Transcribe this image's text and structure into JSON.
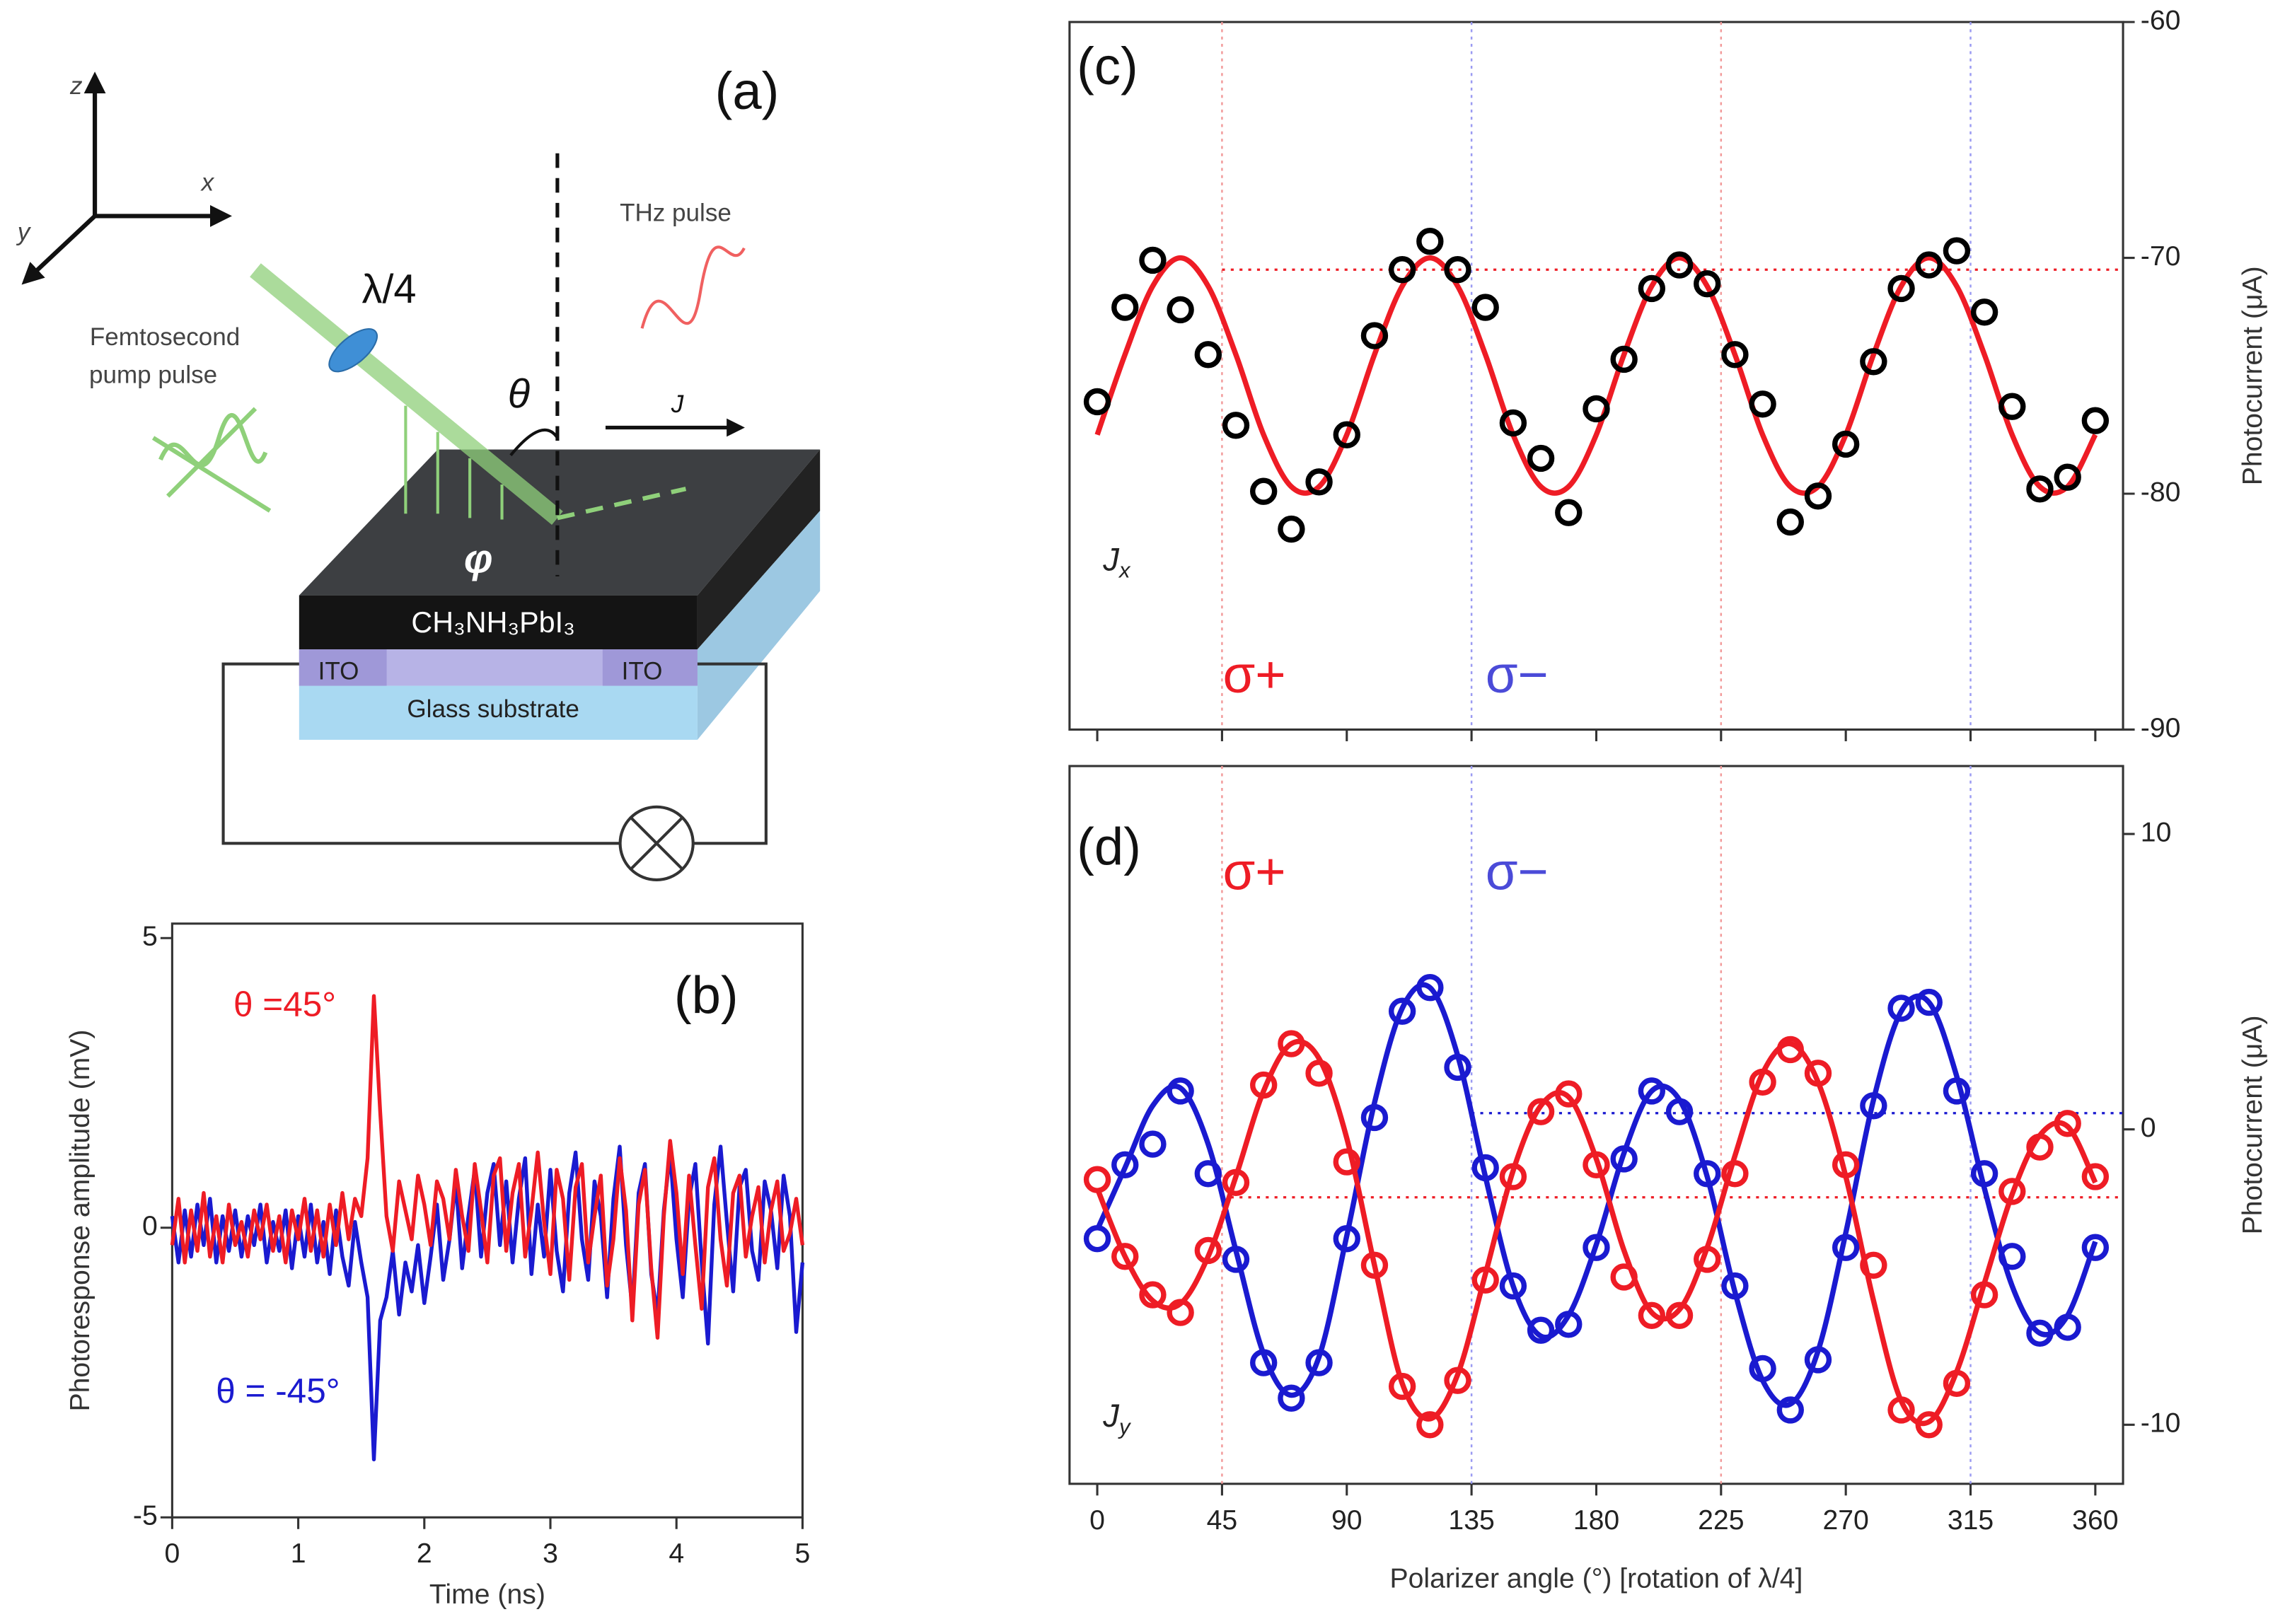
{
  "diagram": {
    "label": "(a)",
    "axes": [
      "z",
      "x",
      "y"
    ],
    "waveplate": "λ/4",
    "thz": "THz pulse",
    "pump": [
      "Femtosecond",
      "pump pulse"
    ],
    "theta": "θ",
    "current": "J",
    "phi": "φ",
    "film": "CH₃NH₃PbI₃",
    "electrodes": [
      "ITO",
      "ITO"
    ],
    "substrate": "Glass substrate"
  },
  "chart_data": [
    {
      "type": "line",
      "label": "(b)",
      "xlabel": "Time (ns)",
      "ylabel": "Photoresponse amplitude (mV)",
      "xlim": [
        0,
        5
      ],
      "xticks": [
        0,
        1,
        2,
        3,
        4,
        5
      ],
      "ylim": [
        -5,
        5.25
      ],
      "yticks": [
        -5,
        0,
        5
      ],
      "annotations": [
        {
          "text": "θ =45°",
          "color": "#ee1c25"
        },
        {
          "text": "θ = -45°",
          "color": "#1a1ad0"
        }
      ],
      "x": [
        0,
        0.05,
        0.1,
        0.15,
        0.2,
        0.25,
        0.3,
        0.35,
        0.4,
        0.45,
        0.5,
        0.55,
        0.6,
        0.65,
        0.7,
        0.75,
        0.8,
        0.85,
        0.9,
        0.95,
        1,
        1.05,
        1.1,
        1.15,
        1.2,
        1.25,
        1.3,
        1.35,
        1.4,
        1.45,
        1.5,
        1.55,
        1.6,
        1.65,
        1.7,
        1.75,
        1.8,
        1.85,
        1.9,
        1.95,
        2,
        2.05,
        2.1,
        2.15,
        2.2,
        2.25,
        2.3,
        2.35,
        2.4,
        2.45,
        2.5,
        2.55,
        2.6,
        2.65,
        2.7,
        2.75,
        2.8,
        2.85,
        2.9,
        2.95,
        3,
        3.05,
        3.1,
        3.15,
        3.2,
        3.25,
        3.3,
        3.35,
        3.4,
        3.45,
        3.5,
        3.55,
        3.6,
        3.65,
        3.7,
        3.75,
        3.8,
        3.85,
        3.9,
        3.95,
        4,
        4.05,
        4.1,
        4.15,
        4.2,
        4.25,
        4.3,
        4.35,
        4.4,
        4.45,
        4.5,
        4.55,
        4.6,
        4.65,
        4.7,
        4.75,
        4.8,
        4.85,
        4.9,
        4.95,
        5
      ],
      "series": [
        {
          "color": "#1a1ad0",
          "values": [
            0.2,
            -0.6,
            0.3,
            -0.5,
            0.4,
            -0.3,
            0.5,
            -0.6,
            0.2,
            -0.4,
            0.3,
            -0.5,
            0.2,
            -0.3,
            0.4,
            -0.6,
            0.1,
            -0.4,
            0.3,
            -0.7,
            0.2,
            -0.5,
            0.4,
            -0.6,
            0.1,
            -0.8,
            0.3,
            -0.5,
            -1.0,
            0.1,
            -0.6,
            -1.2,
            -4.0,
            -1.6,
            -1.2,
            -0.4,
            -1.5,
            -0.6,
            -1.1,
            -0.3,
            -1.3,
            -0.5,
            0.4,
            -0.9,
            -0.2,
            0.8,
            -0.7,
            0.2,
            1.0,
            -0.5,
            0.6,
            1.1,
            -0.3,
            0.8,
            -0.6,
            0.5,
            1.2,
            -0.8,
            0.4,
            -0.5,
            1.0,
            -0.4,
            -1.1,
            0.6,
            1.3,
            -0.2,
            -0.9,
            0.8,
            0.2,
            -1.2,
            0.5,
            1.4,
            -0.3,
            -1.4,
            0.6,
            1.1,
            -0.8,
            -1.5,
            0.3,
            1.3,
            -0.2,
            -1.2,
            0.5,
            1.1,
            -0.6,
            -2.0,
            0.4,
            1.4,
            0.1,
            -1.1,
            0.7,
            1.0,
            -0.4,
            -0.9,
            0.8,
            0.3,
            -0.7,
            0.9,
            0.2,
            -1.8,
            -0.6
          ]
        },
        {
          "color": "#ee1c25",
          "values": [
            -0.3,
            0.5,
            -0.6,
            0.3,
            -0.4,
            0.6,
            -0.5,
            0.2,
            -0.6,
            0.4,
            -0.3,
            0.1,
            -0.5,
            0.3,
            -0.2,
            0.4,
            -0.4,
            0.2,
            -0.6,
            0.3,
            -0.2,
            0.5,
            -0.4,
            0.3,
            -0.5,
            0.4,
            -0.3,
            0.6,
            -0.2,
            0.5,
            0.2,
            1.2,
            4.0,
            2.0,
            0.2,
            -0.4,
            0.8,
            0.3,
            -0.2,
            0.9,
            0.4,
            -0.3,
            0.8,
            0.5,
            -0.2,
            1.0,
            0.2,
            -0.4,
            1.1,
            0.3,
            -0.6,
            0.9,
            1.2,
            -0.4,
            0.6,
            1.1,
            -0.5,
            0.3,
            1.3,
            0.1,
            -0.8,
            1.0,
            0.5,
            -0.9,
            0.7,
            1.1,
            -0.6,
            0.2,
            0.9,
            -1.0,
            -0.2,
            1.2,
            0.3,
            -1.6,
            0.4,
            1.0,
            -0.7,
            -1.9,
            0.2,
            1.5,
            0.6,
            -0.8,
            0.9,
            -0.3,
            -1.4,
            0.7,
            1.2,
            -0.2,
            -1.0,
            0.6,
            0.9,
            -0.5,
            0.2,
            0.7,
            -0.6,
            0.3,
            0.8,
            -0.4,
            -0.1,
            0.5,
            -0.3
          ]
        }
      ]
    },
    {
      "type": "scatter",
      "label": "(c)",
      "ylabel": "Photocurrent (μA)",
      "y_axis_side": "right",
      "ylim": [
        -90,
        -60
      ],
      "yticks": [
        -90,
        -80,
        -70,
        -60
      ],
      "annotations": [
        {
          "text": "σ+",
          "color": "#ee1c25"
        },
        {
          "text": "σ−",
          "color": "#4b4bd8"
        },
        {
          "text": "J",
          "sub": "x",
          "color": "#222"
        }
      ],
      "vlines": [
        {
          "x": 45,
          "color": "#f29a9a"
        },
        {
          "x": 135,
          "color": "#9a9af2"
        },
        {
          "x": 225,
          "color": "#f29a9a"
        },
        {
          "x": 315,
          "color": "#9a9af2"
        }
      ],
      "hlines": [
        {
          "value": -70.5,
          "from": 45,
          "color": "#ee1c25"
        }
      ],
      "x": [
        0,
        10,
        20,
        30,
        40,
        50,
        60,
        70,
        80,
        90,
        100,
        110,
        120,
        130,
        140,
        150,
        160,
        170,
        180,
        190,
        200,
        210,
        220,
        230,
        240,
        250,
        260,
        270,
        280,
        290,
        300,
        310,
        320,
        330,
        340,
        350,
        360
      ],
      "series": [
        {
          "color": "#000000",
          "values": [
            -76.1,
            -72.1,
            -70.1,
            -72.2,
            -74.1,
            -77.1,
            -79.9,
            -81.5,
            -79.5,
            -77.5,
            -73.3,
            -70.5,
            -69.3,
            -70.5,
            -72.1,
            -77.0,
            -78.5,
            -80.8,
            -76.4,
            -74.3,
            -71.3,
            -70.3,
            -71.1,
            -74.1,
            -76.2,
            -81.2,
            -80.1,
            -77.9,
            -74.4,
            -71.3,
            -70.3,
            -69.7,
            -72.3,
            -76.3,
            -79.8,
            -79.3,
            -76.9
          ]
        }
      ],
      "fits": [
        {
          "color": "#ee1c25",
          "values": [
            -77.5,
            -74.1,
            -71.2,
            -70,
            -71.2,
            -74.1,
            -77.5,
            -79.7,
            -79.7,
            -77.5,
            -74.1,
            -71.2,
            -70,
            -71.2,
            -74.1,
            -77.5,
            -79.7,
            -79.7,
            -77.5,
            -74.1,
            -71.2,
            -70,
            -71.2,
            -74.1,
            -77.5,
            -79.7,
            -79.7,
            -77.5,
            -74.1,
            -71.2,
            -70,
            -71.2,
            -74.1,
            -77.5,
            -79.7,
            -79.7,
            -77.5
          ]
        }
      ]
    },
    {
      "type": "scatter",
      "label": "(d)",
      "xlabel": "Polarizer angle (°) [rotation of λ/4]",
      "ylabel": "Photocurrent (μA)",
      "y_axis_side": "right",
      "xlim": [
        -10,
        370
      ],
      "xticks": [
        0,
        45,
        90,
        135,
        180,
        225,
        270,
        315,
        360
      ],
      "ylim": [
        -12,
        12.3
      ],
      "yticks": [
        -10,
        0,
        10
      ],
      "annotations": [
        {
          "text": "σ+",
          "color": "#ee1c25"
        },
        {
          "text": "σ−",
          "color": "#4b4bd8"
        },
        {
          "text": "J",
          "sub": "y",
          "color": "#222"
        }
      ],
      "vlines": [
        {
          "x": 45,
          "color": "#f29a9a"
        },
        {
          "x": 135,
          "color": "#9a9af2"
        },
        {
          "x": 225,
          "color": "#f29a9a"
        },
        {
          "x": 315,
          "color": "#9a9af2"
        }
      ],
      "hlines": [
        {
          "value": 0.55,
          "from": 135,
          "color": "#1a1ad0"
        },
        {
          "value": -2.3,
          "from": 45,
          "color": "#ee1c25"
        }
      ],
      "x": [
        0,
        10,
        20,
        30,
        40,
        50,
        60,
        70,
        80,
        90,
        100,
        110,
        120,
        130,
        140,
        150,
        160,
        170,
        180,
        190,
        200,
        210,
        220,
        230,
        240,
        250,
        260,
        270,
        280,
        290,
        300,
        310,
        320,
        330,
        340,
        350,
        360
      ],
      "series": [
        {
          "color": "#1a1ad0",
          "values": [
            -3.7,
            -1.2,
            -0.5,
            1.3,
            -1.5,
            -4.4,
            -7.9,
            -9.1,
            -7.9,
            -3.7,
            0.4,
            4.0,
            4.8,
            2.1,
            -1.3,
            -5.3,
            -6.8,
            -6.6,
            -4.0,
            -1.0,
            1.3,
            0.6,
            -1.5,
            -5.3,
            -8.1,
            -9.5,
            -7.8,
            -4.0,
            0.8,
            4.1,
            4.3,
            1.3,
            -1.5,
            -4.3,
            -6.9,
            -6.7,
            -4.0
          ]
        },
        {
          "color": "#ee1c25",
          "values": [
            -1.7,
            -4.3,
            -5.6,
            -6.2,
            -4.1,
            -1.8,
            1.5,
            2.9,
            1.9,
            -1.1,
            -4.6,
            -8.7,
            -10.0,
            -8.5,
            -5.1,
            -1.6,
            0.6,
            1.2,
            -1.2,
            -5.0,
            -6.3,
            -6.3,
            -4.4,
            -1.5,
            1.6,
            2.7,
            1.9,
            -1.2,
            -4.6,
            -9.5,
            -10.0,
            -8.6,
            -5.6,
            -2.1,
            -0.6,
            0.2,
            -1.6
          ]
        }
      ],
      "fits": [
        {
          "color": "#1a1ad0",
          "values": [
            -3.4,
            -1.3,
            0.8,
            1.4,
            -0.5,
            -4.1,
            -7.6,
            -9.0,
            -7.7,
            -3.6,
            0.9,
            4.1,
            4.8,
            2.5,
            -1.6,
            -5.3,
            -7.0,
            -6.3,
            -3.9,
            -0.8,
            1.3,
            1.0,
            -1.6,
            -5.5,
            -8.5,
            -9.3,
            -7.5,
            -3.5,
            1.0,
            4.0,
            4.3,
            1.8,
            -2.0,
            -5.3,
            -6.9,
            -6.3,
            -3.8
          ]
        },
        {
          "color": "#ee1c25",
          "values": [
            -2.0,
            -4.3,
            -5.8,
            -5.9,
            -4.3,
            -1.6,
            1.3,
            2.9,
            2.4,
            -0.3,
            -4.6,
            -8.6,
            -9.8,
            -8.3,
            -4.9,
            -1.4,
            0.8,
            1.1,
            -1.0,
            -4.1,
            -6.2,
            -6.1,
            -4.0,
            -0.9,
            1.9,
            2.9,
            1.6,
            -1.6,
            -5.8,
            -9.2,
            -9.9,
            -8.2,
            -5.2,
            -2.2,
            -0.2,
            0.1,
            -1.8
          ]
        }
      ]
    }
  ]
}
